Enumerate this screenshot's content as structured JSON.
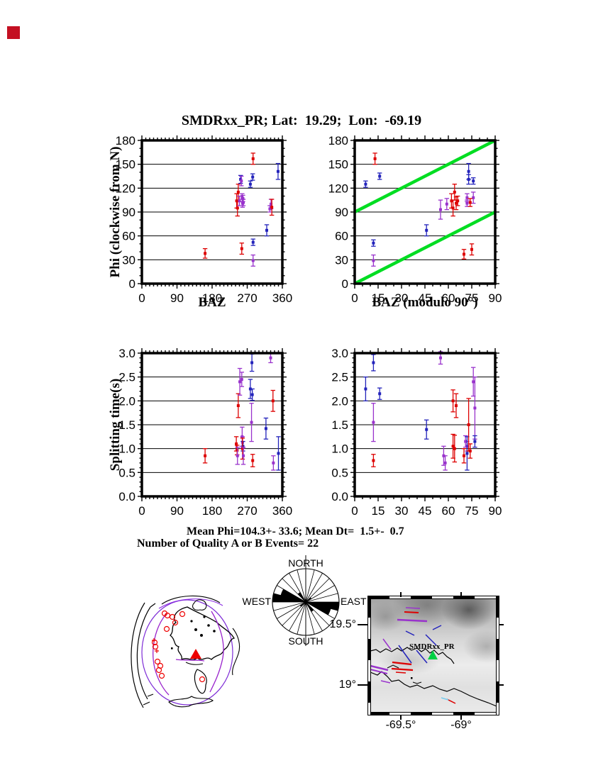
{
  "page": {
    "title": "SMDRxx_PR; Lat:  19.29;  Lon:  -69.19"
  },
  "stats": {
    "line1": "Mean Phi=104.3+- 33.6; Mean Dt=  1.5+-  0.7",
    "line2": "Number of Quality A or B Events= 22",
    "mean_phi": "104.3",
    "mean_phi_err": "33.6",
    "mean_dt": "1.5",
    "mean_dt_err": "0.7",
    "n_events": "22"
  },
  "colors": {
    "red": "#dd0000",
    "blue": "#2323bb",
    "purple": "#9933cc",
    "green": "#00dd22",
    "station_green": "#00d044",
    "marker_red": "#ee0000"
  },
  "chart_data": [
    {
      "name": "phi-vs-baz",
      "type": "scatter",
      "xlabel": "BAZ",
      "ylabel": "Phi (clockwise from N)",
      "xlim": [
        0,
        360
      ],
      "ylim": [
        0,
        180
      ],
      "xticks": [
        0,
        90,
        180,
        270,
        360
      ],
      "yticks": [
        0,
        30,
        60,
        90,
        120,
        150,
        180
      ],
      "xminor": 10,
      "yminor": 10,
      "ydecimals": 0,
      "grid": "horizontal",
      "points": [
        [
          162,
          38,
          6,
          "red"
        ],
        [
          243,
          104,
          9,
          "red"
        ],
        [
          245,
          95,
          10,
          "red"
        ],
        [
          247,
          115,
          10,
          "red"
        ],
        [
          250,
          104,
          6,
          "purple"
        ],
        [
          253,
          131,
          5,
          "blue"
        ],
        [
          255,
          129,
          6,
          "purple"
        ],
        [
          257,
          108,
          5,
          "purple"
        ],
        [
          258,
          101,
          5,
          "purple"
        ],
        [
          259,
          107,
          4,
          "purple"
        ],
        [
          260,
          102,
          4,
          "purple"
        ],
        [
          256,
          44,
          7,
          "red"
        ],
        [
          278,
          125,
          4,
          "blue"
        ],
        [
          284,
          134,
          4,
          "blue"
        ],
        [
          285,
          157,
          7,
          "red"
        ],
        [
          285,
          52,
          4,
          "blue"
        ],
        [
          285,
          29,
          7,
          "purple"
        ],
        [
          320,
          67,
          7,
          "blue"
        ],
        [
          328,
          94,
          4,
          "purple"
        ],
        [
          331,
          100,
          6,
          "purple"
        ],
        [
          333,
          96,
          10,
          "red"
        ],
        [
          349,
          141,
          10,
          "blue"
        ]
      ]
    },
    {
      "name": "phi-vs-bazmod90",
      "type": "scatter",
      "xlabel": "BAZ (modulo 90°)",
      "ylabel": "",
      "xlim": [
        0,
        90
      ],
      "ylim": [
        0,
        180
      ],
      "xticks": [
        0,
        15,
        30,
        45,
        60,
        75,
        90
      ],
      "yticks": [
        0,
        30,
        60,
        90,
        120,
        150,
        180
      ],
      "xminor": 5,
      "yminor": 10,
      "ydecimals": 0,
      "grid": "horizontal",
      "green_lines": [
        [
          0,
          0,
          90,
          90
        ],
        [
          0,
          90,
          90,
          180
        ]
      ],
      "points": [
        [
          7,
          125,
          4,
          "blue"
        ],
        [
          13,
          157,
          7,
          "red"
        ],
        [
          16,
          135,
          4,
          "blue"
        ],
        [
          12,
          51,
          4,
          "blue"
        ],
        [
          12,
          29,
          7,
          "purple"
        ],
        [
          46,
          67,
          7,
          "blue"
        ],
        [
          55,
          93,
          12,
          "purple"
        ],
        [
          59,
          100,
          7,
          "purple"
        ],
        [
          62,
          104,
          9,
          "red"
        ],
        [
          63,
          95,
          10,
          "red"
        ],
        [
          64,
          115,
          10,
          "red"
        ],
        [
          65,
          101,
          8,
          "red"
        ],
        [
          66,
          104,
          6,
          "red"
        ],
        [
          70,
          37,
          6,
          "red"
        ],
        [
          75,
          43,
          7,
          "red"
        ],
        [
          72,
          108,
          5,
          "purple"
        ],
        [
          76,
          108,
          7,
          "purple"
        ],
        [
          72,
          101,
          4,
          "purple"
        ],
        [
          74,
          102,
          5,
          "red"
        ],
        [
          73,
          131,
          6,
          "blue"
        ],
        [
          73,
          141,
          10,
          "blue"
        ],
        [
          76,
          129,
          4,
          "blue"
        ]
      ]
    },
    {
      "name": "dt-vs-baz",
      "type": "scatter",
      "xlabel": "",
      "ylabel": "Splitting time(s)",
      "xlim": [
        0,
        360
      ],
      "ylim": [
        0,
        3
      ],
      "xticks": [
        0,
        90,
        180,
        270,
        360
      ],
      "yticks": [
        0,
        0.5,
        1,
        1.5,
        2,
        2.5,
        3
      ],
      "xminor": 10,
      "yminor": 0.1,
      "ydecimals": 1,
      "grid": "horizontal",
      "points": [
        [
          162,
          0.85,
          0.15,
          "red"
        ],
        [
          242,
          1.1,
          0.15,
          "red"
        ],
        [
          244,
          0.97,
          0.1,
          "red"
        ],
        [
          245,
          0.85,
          0.18,
          "purple"
        ],
        [
          247,
          1.9,
          0.25,
          "red"
        ],
        [
          251,
          2.4,
          0.28,
          "purple"
        ],
        [
          256,
          2.45,
          0.15,
          "purple"
        ],
        [
          257,
          1.25,
          0.2,
          "purple"
        ],
        [
          258,
          1.13,
          0.12,
          "purple"
        ],
        [
          259,
          1.05,
          0.1,
          "blue"
        ],
        [
          258,
          1.0,
          0.22,
          "red"
        ],
        [
          260,
          0.85,
          0.18,
          "purple"
        ],
        [
          278,
          2.25,
          0.2,
          "blue"
        ],
        [
          283,
          2.13,
          0.12,
          "blue"
        ],
        [
          282,
          2.8,
          0.18,
          "blue"
        ],
        [
          281,
          1.55,
          0.4,
          "purple"
        ],
        [
          284,
          0.75,
          0.13,
          "red"
        ],
        [
          318,
          1.42,
          0.22,
          "blue"
        ],
        [
          330,
          2.9,
          0.1,
          "purple"
        ],
        [
          336,
          2.0,
          0.22,
          "red"
        ],
        [
          337,
          0.7,
          0.15,
          "purple"
        ],
        [
          350,
          0.9,
          0.35,
          "blue"
        ]
      ]
    },
    {
      "name": "dt-vs-bazmod90",
      "type": "scatter",
      "xlabel": "",
      "ylabel": "",
      "xlim": [
        0,
        90
      ],
      "ylim": [
        0,
        3
      ],
      "xticks": [
        0,
        15,
        30,
        45,
        60,
        75,
        90
      ],
      "yticks": [
        0,
        0.5,
        1,
        1.5,
        2,
        2.5,
        3
      ],
      "xminor": 5,
      "yminor": 0.1,
      "ydecimals": 1,
      "grid": "horizontal",
      "points": [
        [
          7,
          2.25,
          0.25,
          "blue"
        ],
        [
          12,
          2.8,
          0.17,
          "blue"
        ],
        [
          16,
          2.15,
          0.12,
          "blue"
        ],
        [
          12,
          1.55,
          0.4,
          "purple"
        ],
        [
          12,
          0.75,
          0.13,
          "red"
        ],
        [
          46,
          1.4,
          0.2,
          "blue"
        ],
        [
          55,
          2.9,
          0.13,
          "purple"
        ],
        [
          57,
          0.85,
          0.2,
          "purple"
        ],
        [
          58,
          0.7,
          0.15,
          "purple"
        ],
        [
          63,
          2.0,
          0.23,
          "red"
        ],
        [
          65,
          1.9,
          0.25,
          "red"
        ],
        [
          63,
          1.05,
          0.25,
          "red"
        ],
        [
          64,
          1.0,
          0.28,
          "red"
        ],
        [
          70,
          0.85,
          0.15,
          "red"
        ],
        [
          71,
          1.15,
          0.12,
          "purple"
        ],
        [
          72,
          1.05,
          0.1,
          "purple"
        ],
        [
          72,
          0.9,
          0.35,
          "blue"
        ],
        [
          73,
          1.5,
          0.55,
          "red"
        ],
        [
          74,
          0.95,
          0.15,
          "red"
        ],
        [
          76,
          2.4,
          0.3,
          "purple"
        ],
        [
          77,
          1.85,
          0.65,
          "purple"
        ],
        [
          77,
          1.15,
          0.12,
          "blue"
        ]
      ]
    }
  ],
  "rose": {
    "labels": {
      "north": "NORTH",
      "east": "EAST",
      "south": "SOUTH",
      "west": "WEST"
    },
    "n_sectors": 24,
    "petals": [
      [
        90,
        105,
        1.0
      ],
      [
        105,
        120,
        0.78
      ],
      [
        270,
        285,
        1.0
      ],
      [
        285,
        300,
        0.78
      ],
      [
        315,
        330,
        0.34
      ],
      [
        135,
        150,
        0.34
      ],
      [
        45,
        60,
        0.2
      ],
      [
        225,
        240,
        0.2
      ]
    ]
  },
  "globe": {
    "event_circles": [
      [
        54,
        39
      ],
      [
        58,
        42
      ],
      [
        79,
        40
      ],
      [
        69,
        52
      ],
      [
        57,
        61
      ],
      [
        40,
        80
      ],
      [
        41,
        86
      ],
      [
        44,
        107
      ],
      [
        48,
        113
      ],
      [
        46,
        119
      ],
      [
        50,
        127
      ],
      [
        107,
        132
      ],
      [
        65,
        44
      ]
    ],
    "plus_marks": [
      [
        39,
        77
      ],
      [
        43,
        92
      ]
    ],
    "station_triangle": [
      98,
      97
    ]
  },
  "map": {
    "station_label": "SMDRxx_PR",
    "lon_labels": [
      "-69.5°",
      "-69°"
    ],
    "lat_labels": [
      "19.5°",
      "19°"
    ],
    "segments": [
      [
        38,
        30,
        80,
        32,
        "purple",
        2.5
      ],
      [
        48,
        19,
        68,
        20,
        "red",
        2
      ],
      [
        50,
        13,
        70,
        14,
        "purple",
        1.5
      ],
      [
        50,
        46,
        62,
        52,
        "blue",
        1.5
      ],
      [
        88,
        44,
        100,
        38,
        "blue",
        1.5
      ],
      [
        78,
        51,
        93,
        66,
        "blue",
        1.5
      ],
      [
        40,
        66,
        58,
        91,
        "blue",
        1.5
      ],
      [
        65,
        73,
        80,
        91,
        "blue",
        1.5
      ],
      [
        18,
        57,
        29,
        72,
        "purple",
        1.5
      ],
      [
        31,
        90,
        58,
        93,
        "red",
        2.2
      ],
      [
        30,
        99,
        60,
        101,
        "red",
        2.2
      ],
      [
        36,
        104,
        50,
        105,
        "red",
        1.5
      ],
      [
        0,
        95,
        25,
        101,
        "purple",
        2.5
      ],
      [
        0,
        100,
        24,
        106,
        "purple",
        2
      ],
      [
        15,
        116,
        28,
        119,
        "purple",
        1.5
      ],
      [
        108,
        142,
        120,
        148,
        "red",
        1.5
      ],
      [
        100,
        140,
        110,
        143,
        "cyan",
        1.5
      ]
    ],
    "station_xy": [
      88,
      80
    ]
  }
}
